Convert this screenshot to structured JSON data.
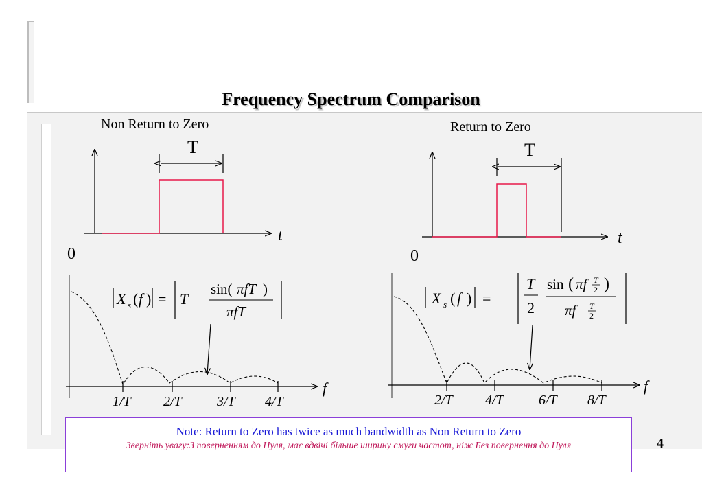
{
  "title": "Frequency Spectrum Comparison",
  "nrz": {
    "title": "Non Return to Zero",
    "period_label": "T",
    "time_axis_label": "t",
    "origin_label": "0",
    "freq_axis_label": "f",
    "tick_labels": [
      "1/T",
      "2/T",
      "3/T",
      "4/T"
    ]
  },
  "rz": {
    "title": "Return to Zero",
    "period_label": "T",
    "time_axis_label": "t",
    "origin_label": "0",
    "freq_axis_label": "f",
    "tick_labels": [
      "2/T",
      "4/T",
      "6/T",
      "8/T"
    ]
  },
  "note": {
    "english": "Note: Return to Zero has twice as much bandwidth as Non Return to Zero",
    "ukrainian": "Зверніть увагу:З поверненням до Нуля, має вдвічі більше ширину смуги частот, ніж Без повернення до Нуля"
  },
  "page_number": "4",
  "colors": {
    "pulse": "#e8194b",
    "note_border": "#8b3fd9",
    "note_en": "#1a1ad6",
    "note_ua": "#c0185a"
  }
}
